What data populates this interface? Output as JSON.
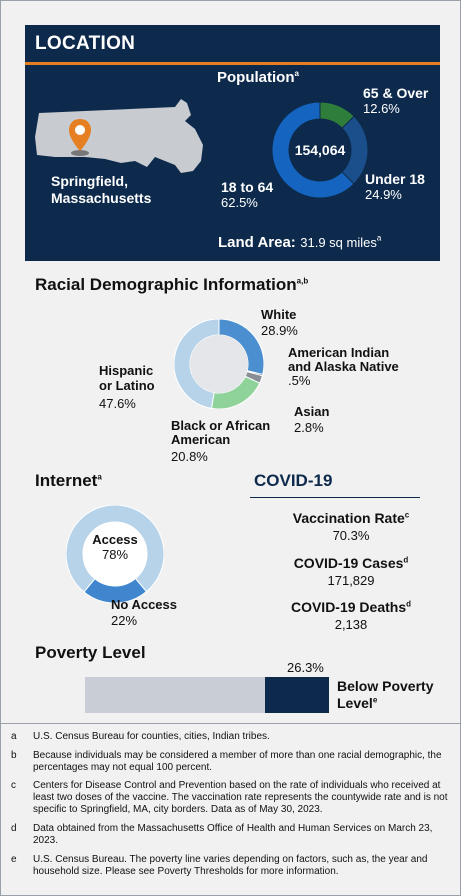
{
  "location": {
    "title": "LOCATION",
    "population_title": "Population",
    "population_sup": "a",
    "total": "154,064",
    "city": "Springfield,",
    "state": "Massachusetts",
    "segments": [
      {
        "label": "65 & Over",
        "value": "12.6%",
        "pct": 12.6,
        "color": "#2e7d3a"
      },
      {
        "label": "Under 18",
        "value": "24.9%",
        "pct": 24.9,
        "color": "#1a4f8c"
      },
      {
        "label": "18 to 64",
        "value": "62.5%",
        "pct": 62.5,
        "color": "#1565c0"
      }
    ],
    "land_area_label": "Land Area:",
    "land_area_value": "31.9 sq miles",
    "land_area_sup": "a"
  },
  "race": {
    "title": "Racial Demographic Information",
    "title_sup": "a,b",
    "groups": [
      {
        "label_lines": [
          "White"
        ],
        "value": "28.9%",
        "pct": 28.9,
        "color": "#4b8fd0"
      },
      {
        "label_lines": [
          "American Indian",
          "and Alaska Native"
        ],
        "value": ".5%",
        "pct": 0.5,
        "color": "#1f3b63"
      },
      {
        "label_lines": [
          "Asian"
        ],
        "value": "2.8%",
        "pct": 2.8,
        "color": "#8a8f96"
      },
      {
        "label_lines": [
          "Black or African",
          "American"
        ],
        "value": "20.8%",
        "pct": 20.8,
        "color": "#8fd39a"
      },
      {
        "label_lines": [
          "Hispanic",
          "or Latino"
        ],
        "value": "47.6%",
        "pct": 47.6,
        "color": "#b7d3ea"
      }
    ]
  },
  "internet": {
    "title": "Internet",
    "title_sup": "a",
    "access_label": "Access",
    "access_value": "78%",
    "access_pct": 78,
    "no_access_label": "No Access",
    "no_access_value": "22%",
    "no_access_pct": 22,
    "color_access": "#b7d3ea",
    "color_no_access": "#3f86cf"
  },
  "covid": {
    "title": "COVID-19",
    "items": [
      {
        "label": "Vaccination Rate",
        "sup": "c",
        "value": "70.3%"
      },
      {
        "label": "COVID-19 Cases",
        "sup": "d",
        "value": "171,829"
      },
      {
        "label": "COVID-19 Deaths",
        "sup": "d",
        "value": "2,138"
      }
    ]
  },
  "poverty": {
    "title": "Poverty Level",
    "value": "26.3%",
    "pct": 26.3,
    "label_line1": "Below Poverty",
    "label_line2": "Level",
    "label_sup": "e",
    "color_below": "#0d2a4c",
    "color_rest": "#c9ced6"
  },
  "footnotes": [
    {
      "key": "a",
      "text": "U.S. Census Bureau for counties, cities, Indian tribes."
    },
    {
      "key": "b",
      "text": "Because individuals may be considered a member of more than one racial demographic, the percentages may not equal 100 percent."
    },
    {
      "key": "c",
      "text": "Centers for Disease Control and Prevention based on the rate of individuals who received at least two doses of the vaccine. The vaccination rate represents the countywide rate and is not specific to Springfield, MA, city borders. Data as of May 30, 2023."
    },
    {
      "key": "d",
      "text": "Data obtained from the Massachusetts Office of Health and Human Services on March 23, 2023."
    },
    {
      "key": "e",
      "text": "U.S. Census Bureau. The poverty line varies depending on factors, such as, the year and household size. Please see Poverty Thresholds for more information."
    }
  ]
}
